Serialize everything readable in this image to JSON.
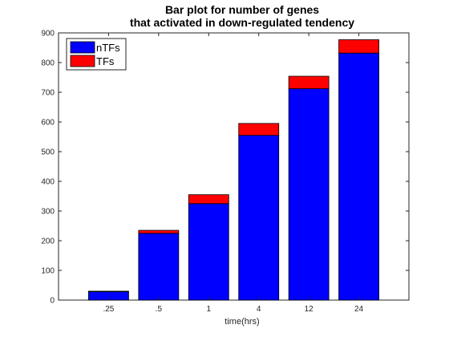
{
  "chart_data": {
    "type": "bar",
    "stacked": true,
    "title_lines": [
      "Bar plot for number of genes",
      "that activated in down-regulated tendency"
    ],
    "xlabel": "time(hrs)",
    "ylabel": "",
    "categories": [
      ".25",
      ".5",
      "1",
      "4",
      "12",
      "24"
    ],
    "series": [
      {
        "name": "nTFs",
        "color": "#0000ff",
        "values": [
          28,
          225,
          325,
          555,
          712,
          832
        ]
      },
      {
        "name": "TFs",
        "color": "#ff0000",
        "values": [
          2,
          10,
          30,
          40,
          42,
          45
        ]
      }
    ],
    "ylim": [
      0,
      900
    ],
    "yticks": [
      0,
      100,
      200,
      300,
      400,
      500,
      600,
      700,
      800,
      900
    ],
    "grid": false,
    "legend_position": "top-left"
  }
}
